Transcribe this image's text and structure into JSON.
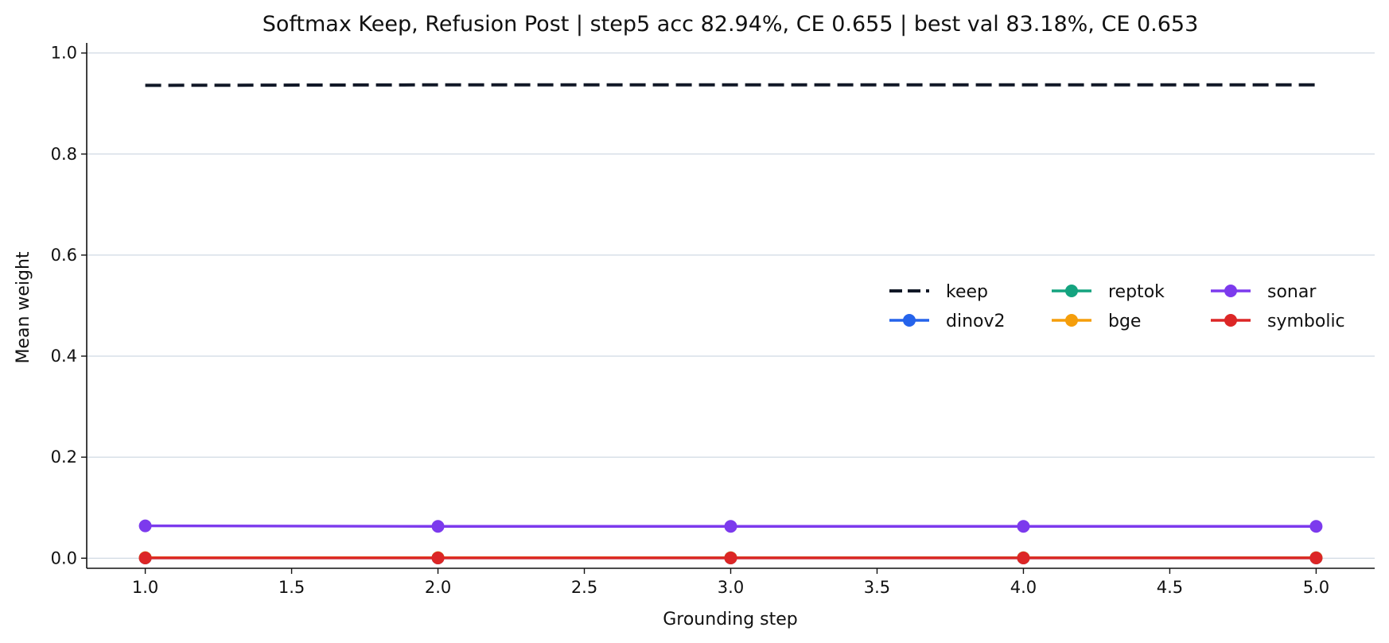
{
  "chart_data": {
    "type": "line",
    "title": "Softmax Keep, Refusion Post | step5 acc 82.94%, CE 0.655 | best val 83.18%, CE 0.653",
    "xlabel": "Grounding step",
    "ylabel": "Mean weight",
    "xlim": [
      0.8,
      5.2
    ],
    "ylim": [
      -0.02,
      1.02
    ],
    "xticks": [
      "1.0",
      "1.5",
      "2.0",
      "2.5",
      "3.0",
      "3.5",
      "4.0",
      "4.5",
      "5.0"
    ],
    "yticks": [
      "0.0",
      "0.2",
      "0.4",
      "0.6",
      "0.8",
      "1.0"
    ],
    "grid": "horizontal",
    "legend_position": "center-right",
    "x": [
      1,
      2,
      3,
      4,
      5
    ],
    "series": [
      {
        "name": "keep",
        "values": [
          0.936,
          0.937,
          0.937,
          0.937,
          0.937
        ],
        "color": "#111827",
        "style": "dashed",
        "marker": "none"
      },
      {
        "name": "dinov2",
        "values": [
          0.0005,
          0.0005,
          0.0005,
          0.0005,
          0.0005
        ],
        "color": "#2563eb",
        "style": "solid",
        "marker": "circle"
      },
      {
        "name": "reptok",
        "values": [
          0.0008,
          0.0008,
          0.0008,
          0.0008,
          0.0008
        ],
        "color": "#14a37f",
        "style": "solid",
        "marker": "circle"
      },
      {
        "name": "bge",
        "values": [
          0.001,
          0.001,
          0.0008,
          0.0008,
          0.0008
        ],
        "color": "#f59e0b",
        "style": "solid",
        "marker": "circle"
      },
      {
        "name": "sonar",
        "values": [
          0.064,
          0.063,
          0.063,
          0.063,
          0.063
        ],
        "color": "#7c3aed",
        "style": "solid",
        "marker": "circle"
      },
      {
        "name": "symbolic",
        "values": [
          0.0005,
          0.0005,
          0.0005,
          0.0005,
          0.0005
        ],
        "color": "#dc2626",
        "style": "solid",
        "marker": "circle"
      }
    ]
  }
}
